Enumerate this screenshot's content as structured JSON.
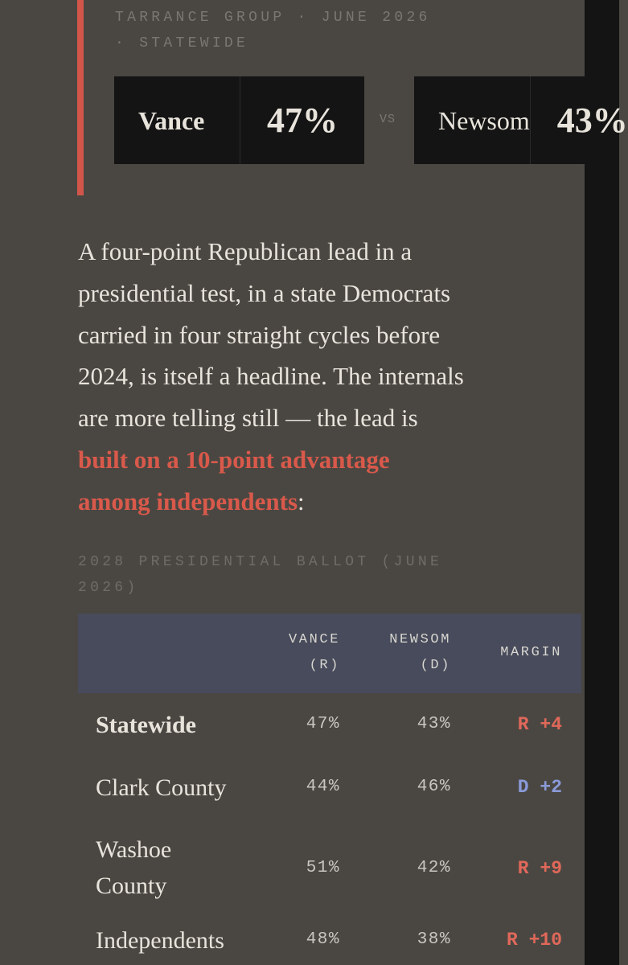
{
  "header": {
    "kicker_line1": "TARRANCE GROUP · JUNE 2026",
    "kicker_line2": "· STATEWIDE",
    "vs_label": "VS",
    "candidates": [
      {
        "name": "Vance",
        "pct": "47%"
      },
      {
        "name": "Newsom",
        "pct": "43%"
      }
    ],
    "accent_color": "#d2554a"
  },
  "article": {
    "lines": [
      "A four-point Republican lead in a",
      "presidential test, in a state Democrats",
      "carried in four straight cycles before",
      "2024, is itself a headline. The internals",
      "are more telling still — the lead is"
    ],
    "highlight_line1": "built on a 10-point advantage",
    "highlight_line2": "among independents",
    "highlight_suffix": ":",
    "highlight_color": "#d9594b"
  },
  "table": {
    "caption_line1": "2028 PRESIDENTIAL BALLOT (JUNE",
    "caption_line2": "2026)",
    "headers": {
      "vance_line1": "VANCE",
      "vance_line2": "(R)",
      "newsom_line1": "NEWSOM",
      "newsom_line2": "(D)",
      "margin": "MARGIN"
    },
    "rows": [
      {
        "name": "Statewide",
        "vance": "47%",
        "newsom": "43%",
        "margin": "R +4",
        "party": "R"
      },
      {
        "name": "Clark County",
        "vance": "44%",
        "newsom": "46%",
        "margin": "D +2",
        "party": "D"
      },
      {
        "name_line1": "Washoe",
        "name_line2": "County",
        "vance": "51%",
        "newsom": "42%",
        "margin": "R +9",
        "party": "R"
      },
      {
        "name": "Independents",
        "vance": "48%",
        "newsom": "38%",
        "margin": "R +10",
        "party": "R"
      }
    ],
    "colors": {
      "republican": "#e0685a",
      "democrat": "#8a9ad8",
      "header_bg": "#474b5b"
    }
  }
}
